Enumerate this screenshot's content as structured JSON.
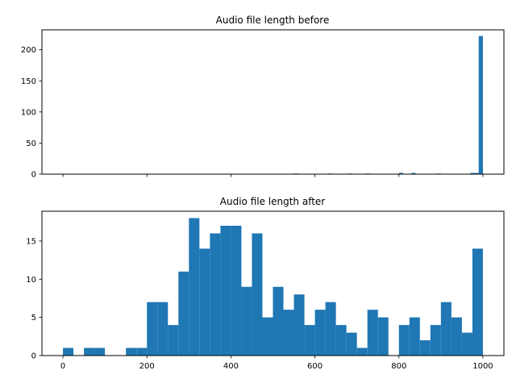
{
  "chart_data": [
    {
      "type": "bar",
      "title": "Audio file length before",
      "xlabel": "",
      "ylabel": "",
      "color": "#1f77b4",
      "xlim": [
        -50,
        1050
      ],
      "ylim": [
        0,
        232
      ],
      "grid": false,
      "x_ticks": [
        0,
        200,
        400,
        600,
        800,
        1000
      ],
      "x_tick_labels_visible": false,
      "y_ticks": [
        0,
        50,
        100,
        150,
        200
      ],
      "y_tick_labels": [
        "0",
        "50",
        "100",
        "150",
        "200"
      ],
      "bin_width": 10,
      "bins": [
        {
          "x0": 550,
          "x1": 560,
          "count": 1
        },
        {
          "x0": 630,
          "x1": 640,
          "count": 1
        },
        {
          "x0": 680,
          "x1": 690,
          "count": 1
        },
        {
          "x0": 720,
          "x1": 730,
          "count": 1
        },
        {
          "x0": 800,
          "x1": 810,
          "count": 2
        },
        {
          "x0": 830,
          "x1": 840,
          "count": 2
        },
        {
          "x0": 890,
          "x1": 900,
          "count": 1
        },
        {
          "x0": 970,
          "x1": 980,
          "count": 2
        },
        {
          "x0": 980,
          "x1": 990,
          "count": 2
        },
        {
          "x0": 990,
          "x1": 1000,
          "count": 222
        }
      ]
    },
    {
      "type": "bar",
      "title": "Audio file length after",
      "xlabel": "",
      "ylabel": "",
      "color": "#1f77b4",
      "xlim": [
        -50,
        1050
      ],
      "ylim": [
        0,
        18.9
      ],
      "grid": false,
      "x_ticks": [
        0,
        200,
        400,
        600,
        800,
        1000
      ],
      "x_tick_labels": [
        "0",
        "200",
        "400",
        "600",
        "800",
        "1000"
      ],
      "y_ticks": [
        0,
        5,
        10,
        15
      ],
      "y_tick_labels": [
        "0",
        "5",
        "10",
        "15"
      ],
      "bin_width": 25,
      "bins": [
        {
          "x0": 0,
          "x1": 25,
          "count": 1
        },
        {
          "x0": 25,
          "x1": 50,
          "count": 0
        },
        {
          "x0": 50,
          "x1": 75,
          "count": 1
        },
        {
          "x0": 75,
          "x1": 100,
          "count": 1
        },
        {
          "x0": 100,
          "x1": 125,
          "count": 0
        },
        {
          "x0": 125,
          "x1": 150,
          "count": 0
        },
        {
          "x0": 150,
          "x1": 175,
          "count": 1
        },
        {
          "x0": 175,
          "x1": 200,
          "count": 1
        },
        {
          "x0": 200,
          "x1": 225,
          "count": 7
        },
        {
          "x0": 225,
          "x1": 250,
          "count": 7
        },
        {
          "x0": 250,
          "x1": 275,
          "count": 4
        },
        {
          "x0": 275,
          "x1": 300,
          "count": 11
        },
        {
          "x0": 300,
          "x1": 325,
          "count": 18
        },
        {
          "x0": 325,
          "x1": 350,
          "count": 14
        },
        {
          "x0": 350,
          "x1": 375,
          "count": 16
        },
        {
          "x0": 375,
          "x1": 400,
          "count": 17
        },
        {
          "x0": 400,
          "x1": 425,
          "count": 17
        },
        {
          "x0": 425,
          "x1": 450,
          "count": 9
        },
        {
          "x0": 450,
          "x1": 475,
          "count": 16
        },
        {
          "x0": 475,
          "x1": 500,
          "count": 5
        },
        {
          "x0": 500,
          "x1": 525,
          "count": 9
        },
        {
          "x0": 525,
          "x1": 550,
          "count": 6
        },
        {
          "x0": 550,
          "x1": 575,
          "count": 8
        },
        {
          "x0": 575,
          "x1": 600,
          "count": 4
        },
        {
          "x0": 600,
          "x1": 625,
          "count": 6
        },
        {
          "x0": 625,
          "x1": 650,
          "count": 7
        },
        {
          "x0": 650,
          "x1": 675,
          "count": 4
        },
        {
          "x0": 675,
          "x1": 700,
          "count": 3
        },
        {
          "x0": 700,
          "x1": 725,
          "count": 1
        },
        {
          "x0": 725,
          "x1": 750,
          "count": 6
        },
        {
          "x0": 750,
          "x1": 775,
          "count": 5
        },
        {
          "x0": 775,
          "x1": 800,
          "count": 0
        },
        {
          "x0": 800,
          "x1": 825,
          "count": 4
        },
        {
          "x0": 825,
          "x1": 850,
          "count": 5
        },
        {
          "x0": 850,
          "x1": 875,
          "count": 2
        },
        {
          "x0": 875,
          "x1": 900,
          "count": 4
        },
        {
          "x0": 900,
          "x1": 925,
          "count": 7
        },
        {
          "x0": 925,
          "x1": 950,
          "count": 5
        },
        {
          "x0": 950,
          "x1": 975,
          "count": 3
        },
        {
          "x0": 975,
          "x1": 1000,
          "count": 14
        }
      ]
    }
  ]
}
